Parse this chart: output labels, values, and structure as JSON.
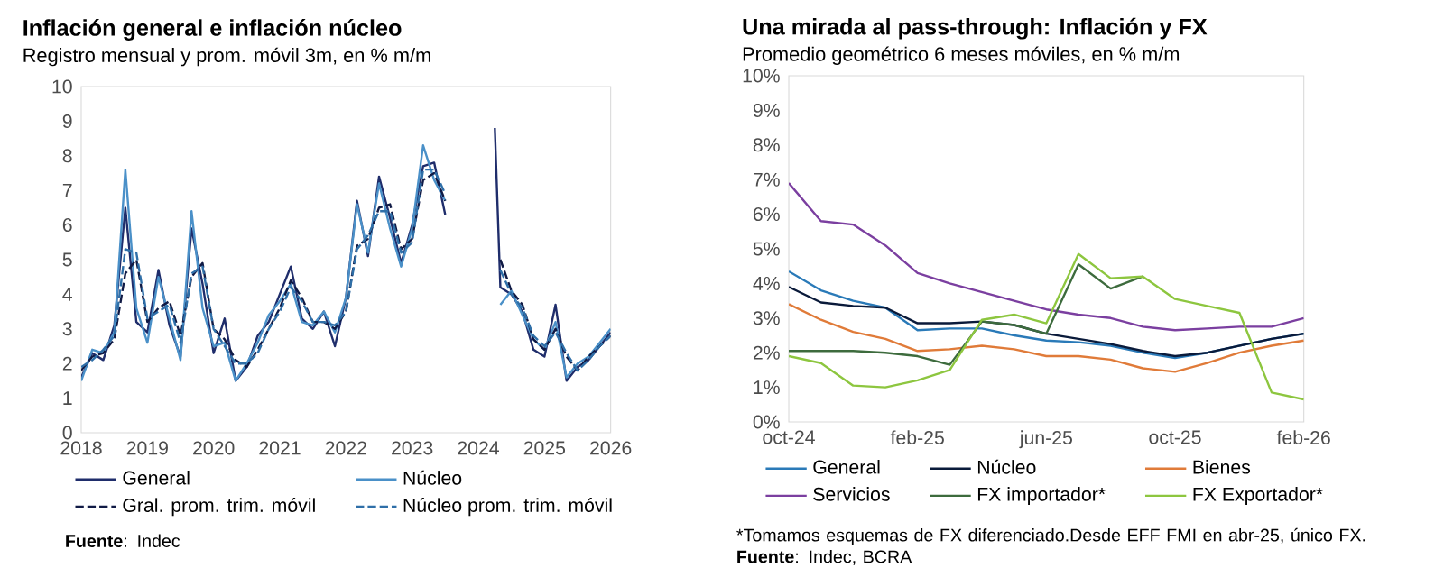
{
  "chart_data": [
    {
      "type": "line",
      "title": "Inflación general e inflación núcleo",
      "subtitle": "Registro mensual y prom. móvil 3m, en % m/m",
      "x": [
        "2018-01",
        "2018-03",
        "2018-05",
        "2018-07",
        "2018-09",
        "2018-11",
        "2019-01",
        "2019-03",
        "2019-05",
        "2019-07",
        "2019-09",
        "2019-11",
        "2020-01",
        "2020-03",
        "2020-05",
        "2020-07",
        "2020-09",
        "2020-11",
        "2021-01",
        "2021-03",
        "2021-05",
        "2021-07",
        "2021-09",
        "2021-11",
        "2022-01",
        "2022-03",
        "2022-05",
        "2022-07",
        "2022-09",
        "2022-11",
        "2023-01",
        "2023-03",
        "2023-05",
        "2023-07",
        "2024-01",
        "2024-04",
        "2024-05",
        "2024-07",
        "2024-09",
        "2024-11",
        "2025-01",
        "2025-03",
        "2025-05",
        "2025-07",
        "2025-09",
        "2025-11",
        "2026-01"
      ],
      "series": [
        {
          "name": "General",
          "color": "#1f2d6b",
          "line_style": "solid",
          "values": [
            1.6,
            2.3,
            2.1,
            3.1,
            6.5,
            3.2,
            2.9,
            4.7,
            3.1,
            2.2,
            5.9,
            4.3,
            2.3,
            3.3,
            1.5,
            1.9,
            2.8,
            3.2,
            4.0,
            4.8,
            3.3,
            3.0,
            3.5,
            2.5,
            3.9,
            6.7,
            5.1,
            7.4,
            6.2,
            4.9,
            6.0,
            7.7,
            7.8,
            6.3,
            null,
            8.8,
            4.2,
            4.0,
            3.5,
            2.4,
            2.2,
            3.7,
            1.5,
            1.9,
            2.1,
            2.5,
            2.9
          ]
        },
        {
          "name": "Núcleo",
          "color": "#4a90c8",
          "line_style": "solid",
          "values": [
            1.5,
            2.4,
            2.3,
            2.9,
            7.6,
            3.6,
            2.6,
            4.5,
            3.3,
            2.1,
            6.4,
            3.6,
            2.5,
            2.6,
            1.5,
            2.0,
            2.6,
            3.4,
            3.8,
            4.3,
            3.2,
            3.1,
            3.5,
            2.9,
            3.9,
            6.6,
            5.2,
            7.2,
            5.9,
            4.8,
            5.9,
            8.3,
            7.3,
            6.7,
            null,
            null,
            3.7,
            4.1,
            3.4,
            2.7,
            2.4,
            3.2,
            1.6,
            2.0,
            2.2,
            2.6,
            3.0
          ]
        },
        {
          "name": "Gral. prom. trim. móvil",
          "color": "#101a45",
          "line_style": "dashed",
          "values": [
            1.8,
            2.2,
            2.3,
            2.7,
            4.6,
            5.0,
            3.2,
            3.6,
            3.8,
            2.8,
            4.5,
            4.9,
            3.0,
            2.7,
            2.1,
            1.9,
            2.4,
            3.0,
            3.6,
            4.4,
            3.9,
            3.2,
            3.2,
            3.0,
            3.5,
            5.4,
            5.6,
            6.5,
            6.6,
            5.3,
            5.6,
            7.3,
            7.5,
            6.7,
            null,
            null,
            5.0,
            4.1,
            3.7,
            2.7,
            2.4,
            3.0,
            2.2,
            1.8,
            2.2,
            2.5,
            2.8
          ]
        },
        {
          "name": "Núcleo prom. trim. móvil",
          "color": "#2f6fa8",
          "line_style": "dashed",
          "values": [
            1.9,
            2.1,
            2.4,
            2.8,
            5.3,
            5.2,
            3.3,
            3.5,
            3.7,
            2.6,
            4.6,
            4.8,
            3.0,
            2.5,
            2.0,
            2.0,
            2.3,
            3.0,
            3.5,
            4.2,
            3.8,
            3.2,
            3.2,
            3.1,
            3.5,
            5.3,
            5.7,
            6.4,
            6.4,
            5.2,
            5.5,
            7.6,
            7.6,
            6.9,
            null,
            null,
            4.7,
            4.0,
            3.6,
            2.8,
            2.5,
            2.9,
            2.3,
            1.8,
            2.1,
            2.5,
            2.8
          ]
        }
      ],
      "xlim": [
        "2018",
        "2026"
      ],
      "xticks": [
        "2018",
        "2019",
        "2020",
        "2021",
        "2022",
        "2023",
        "2024",
        "2025",
        "2026"
      ],
      "ylim": [
        0,
        10
      ],
      "yticks": [
        0,
        1,
        2,
        3,
        4,
        5,
        6,
        7,
        8,
        9,
        10
      ],
      "legend": "bottom",
      "annotations": [
        "**Fuente**: Indec"
      ]
    },
    {
      "type": "line",
      "title": "Una mirada al pass-through: Inflación y FX",
      "subtitle": "Promedio geométrico 6 meses móviles, en % m/m",
      "categories": [
        "oct-24",
        null,
        null,
        null,
        "feb-25",
        null,
        null,
        null,
        "jun-25",
        null,
        null,
        null,
        "oct-25",
        null,
        null,
        null,
        "feb-26"
      ],
      "series": [
        {
          "name": "General",
          "color": "#2a7ab8",
          "values": [
            4.35,
            3.8,
            3.5,
            3.3,
            2.65,
            2.7,
            2.7,
            2.5,
            2.35,
            2.3,
            2.2,
            2.0,
            1.85,
            2.0,
            2.2,
            2.4,
            2.55
          ]
        },
        {
          "name": "Núcleo",
          "color": "#0a1a3a",
          "values": [
            3.9,
            3.45,
            3.35,
            3.3,
            2.85,
            2.85,
            2.9,
            2.8,
            2.55,
            2.4,
            2.25,
            2.05,
            1.9,
            2.0,
            2.2,
            2.4,
            2.55
          ]
        },
        {
          "name": "Bienes",
          "color": "#e07b39",
          "values": [
            3.4,
            2.95,
            2.6,
            2.4,
            2.05,
            2.1,
            2.2,
            2.1,
            1.9,
            1.9,
            1.8,
            1.55,
            1.45,
            1.7,
            2.0,
            2.2,
            2.35
          ]
        },
        {
          "name": "Servicios",
          "color": "#7b3fa0",
          "values": [
            6.9,
            5.8,
            5.7,
            5.1,
            4.3,
            4.0,
            3.75,
            3.5,
            3.25,
            3.1,
            3.0,
            2.75,
            2.65,
            2.7,
            2.75,
            2.75,
            3.0
          ]
        },
        {
          "name": "FX importador*",
          "color": "#3d6b3d",
          "values": [
            2.05,
            2.05,
            2.05,
            2.0,
            1.9,
            1.65,
            2.9,
            2.8,
            2.55,
            4.55,
            3.85,
            4.2,
            null,
            null,
            null,
            null,
            null
          ]
        },
        {
          "name": "FX Exportador*",
          "color": "#8dc63f",
          "values": [
            1.9,
            1.7,
            1.05,
            1.0,
            1.2,
            1.5,
            2.95,
            3.1,
            2.85,
            4.85,
            4.15,
            4.2,
            3.55,
            3.35,
            3.15,
            0.85,
            0.65
          ]
        }
      ],
      "ylim": [
        0,
        10
      ],
      "yticks": [
        {
          "value": 0,
          "label": "0%"
        },
        {
          "value": 1,
          "label": "1%"
        },
        {
          "value": 2,
          "label": "2%"
        },
        {
          "value": 3,
          "label": "3%"
        },
        {
          "value": 4,
          "label": "4%"
        },
        {
          "value": 5,
          "label": "5%"
        },
        {
          "value": 6,
          "label": "6%"
        },
        {
          "value": 7,
          "label": "7%"
        },
        {
          "value": 8,
          "label": "8%"
        },
        {
          "value": 9,
          "label": "9%"
        },
        {
          "value": 10,
          "label": "10%"
        }
      ],
      "legend": "bottom",
      "annotations": [
        "*Tomamos esquemas de FX diferenciado.Desde EFF FMI en abr-25, único FX. **Fuente**: Indec, BCRA"
      ]
    }
  ]
}
